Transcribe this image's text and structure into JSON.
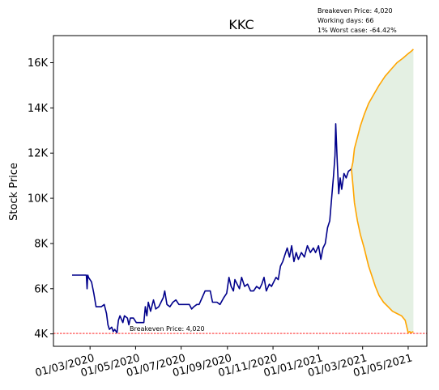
{
  "chart_data": {
    "type": "line",
    "title": "KKC",
    "xlabel": "",
    "ylabel": "Stock Price",
    "ylim": [
      3450,
      17200
    ],
    "xlim": [
      "2020-01-12",
      "2021-05-26"
    ],
    "y_ticks": [
      {
        "value": 4000,
        "label": "4K"
      },
      {
        "value": 6000,
        "label": "6K"
      },
      {
        "value": 8000,
        "label": "8K"
      },
      {
        "value": 10000,
        "label": "10K"
      },
      {
        "value": 12000,
        "label": "12K"
      },
      {
        "value": 14000,
        "label": "14K"
      },
      {
        "value": 16000,
        "label": "16K"
      }
    ],
    "x_ticks": [
      {
        "date": "2020-03-01",
        "label": "01/03/2020"
      },
      {
        "date": "2020-05-01",
        "label": "01/05/2020"
      },
      {
        "date": "2020-07-01",
        "label": "01/07/2020"
      },
      {
        "date": "2020-09-01",
        "label": "01/09/2020"
      },
      {
        "date": "2020-11-01",
        "label": "01/11/2020"
      },
      {
        "date": "2021-01-01",
        "label": "01/01/2021"
      },
      {
        "date": "2021-03-01",
        "label": "01/03/2021"
      },
      {
        "date": "2021-05-01",
        "label": "01/05/2021"
      }
    ],
    "info_lines": [
      "Breakeven Price: 4,020",
      "Working days: 66",
      "1% Worst case: -64.42%"
    ],
    "breakeven": {
      "value": 4020,
      "label": "Breakeven Price: 4,020",
      "color": "#ff0000"
    },
    "colors": {
      "history": "#00008b",
      "upper": "#ffa500",
      "lower": "#ffa500",
      "band": "#d5e8d4"
    },
    "grid": false,
    "series": [
      {
        "role": "history",
        "points": [
          [
            "2020-02-06",
            6600
          ],
          [
            "2020-02-20",
            6600
          ],
          [
            "2020-02-25",
            6600
          ],
          [
            "2020-02-26",
            6000
          ],
          [
            "2020-02-27",
            6600
          ],
          [
            "2020-02-28",
            6500
          ],
          [
            "2020-03-03",
            6300
          ],
          [
            "2020-03-06",
            5800
          ],
          [
            "2020-03-09",
            5200
          ],
          [
            "2020-03-16",
            5200
          ],
          [
            "2020-03-20",
            5300
          ],
          [
            "2020-03-23",
            4900
          ],
          [
            "2020-03-25",
            4400
          ],
          [
            "2020-03-27",
            4200
          ],
          [
            "2020-03-30",
            4300
          ],
          [
            "2020-04-01",
            4100
          ],
          [
            "2020-04-03",
            4200
          ],
          [
            "2020-04-06",
            4050
          ],
          [
            "2020-04-08",
            4600
          ],
          [
            "2020-04-10",
            4800
          ],
          [
            "2020-04-14",
            4500
          ],
          [
            "2020-04-16",
            4800
          ],
          [
            "2020-04-20",
            4700
          ],
          [
            "2020-04-22",
            4400
          ],
          [
            "2020-04-24",
            4700
          ],
          [
            "2020-04-28",
            4700
          ],
          [
            "2020-05-02",
            4500
          ],
          [
            "2020-05-06",
            4500
          ],
          [
            "2020-05-12",
            4500
          ],
          [
            "2020-05-14",
            5200
          ],
          [
            "2020-05-16",
            4800
          ],
          [
            "2020-05-18",
            5400
          ],
          [
            "2020-05-21",
            5000
          ],
          [
            "2020-05-25",
            5500
          ],
          [
            "2020-05-28",
            5100
          ],
          [
            "2020-06-01",
            5200
          ],
          [
            "2020-06-04",
            5400
          ],
          [
            "2020-06-07",
            5600
          ],
          [
            "2020-06-09",
            5900
          ],
          [
            "2020-06-12",
            5300
          ],
          [
            "2020-06-16",
            5200
          ],
          [
            "2020-06-20",
            5400
          ],
          [
            "2020-06-24",
            5500
          ],
          [
            "2020-06-28",
            5300
          ],
          [
            "2020-07-08",
            5300
          ],
          [
            "2020-07-12",
            5300
          ],
          [
            "2020-07-15",
            5100
          ],
          [
            "2020-07-18",
            5200
          ],
          [
            "2020-07-22",
            5300
          ],
          [
            "2020-07-25",
            5300
          ],
          [
            "2020-07-29",
            5600
          ],
          [
            "2020-08-02",
            5900
          ],
          [
            "2020-08-09",
            5900
          ],
          [
            "2020-08-12",
            5400
          ],
          [
            "2020-08-18",
            5400
          ],
          [
            "2020-08-22",
            5300
          ],
          [
            "2020-08-27",
            5600
          ],
          [
            "2020-08-31",
            5800
          ],
          [
            "2020-09-03",
            6500
          ],
          [
            "2020-09-06",
            6100
          ],
          [
            "2020-09-09",
            5900
          ],
          [
            "2020-09-11",
            6400
          ],
          [
            "2020-09-14",
            6200
          ],
          [
            "2020-09-17",
            6000
          ],
          [
            "2020-09-20",
            6500
          ],
          [
            "2020-09-24",
            6100
          ],
          [
            "2020-09-28",
            6200
          ],
          [
            "2020-10-02",
            5900
          ],
          [
            "2020-10-06",
            5900
          ],
          [
            "2020-10-10",
            6100
          ],
          [
            "2020-10-14",
            6000
          ],
          [
            "2020-10-17",
            6200
          ],
          [
            "2020-10-20",
            6500
          ],
          [
            "2020-10-23",
            5900
          ],
          [
            "2020-10-27",
            6200
          ],
          [
            "2020-10-30",
            6100
          ],
          [
            "2020-11-02",
            6300
          ],
          [
            "2020-11-05",
            6500
          ],
          [
            "2020-11-08",
            6400
          ],
          [
            "2020-11-11",
            7000
          ],
          [
            "2020-11-14",
            7200
          ],
          [
            "2020-11-17",
            7500
          ],
          [
            "2020-11-20",
            7800
          ],
          [
            "2020-11-23",
            7400
          ],
          [
            "2020-11-26",
            7900
          ],
          [
            "2020-11-29",
            7200
          ],
          [
            "2020-12-02",
            7600
          ],
          [
            "2020-12-05",
            7300
          ],
          [
            "2020-12-09",
            7600
          ],
          [
            "2020-12-13",
            7400
          ],
          [
            "2020-12-17",
            7900
          ],
          [
            "2020-12-21",
            7600
          ],
          [
            "2020-12-25",
            7800
          ],
          [
            "2020-12-28",
            7600
          ],
          [
            "2021-01-01",
            7900
          ],
          [
            "2021-01-04",
            7300
          ],
          [
            "2021-01-07",
            7800
          ],
          [
            "2021-01-10",
            8000
          ],
          [
            "2021-01-13",
            8700
          ],
          [
            "2021-01-16",
            9000
          ],
          [
            "2021-01-19",
            10200
          ],
          [
            "2021-01-21",
            11000
          ],
          [
            "2021-01-23",
            11900
          ],
          [
            "2021-01-24",
            13300
          ],
          [
            "2021-01-26",
            11600
          ],
          [
            "2021-01-28",
            10200
          ],
          [
            "2021-01-30",
            10900
          ],
          [
            "2021-02-01",
            10400
          ],
          [
            "2021-02-04",
            11100
          ],
          [
            "2021-02-07",
            10900
          ],
          [
            "2021-02-10",
            11200
          ],
          [
            "2021-02-14",
            11300
          ]
        ]
      },
      {
        "role": "upper",
        "points": [
          [
            "2021-02-14",
            11300
          ],
          [
            "2021-02-16",
            11600
          ],
          [
            "2021-02-18",
            12200
          ],
          [
            "2021-02-22",
            12700
          ],
          [
            "2021-02-26",
            13200
          ],
          [
            "2021-03-03",
            13700
          ],
          [
            "2021-03-09",
            14200
          ],
          [
            "2021-03-16",
            14600
          ],
          [
            "2021-03-23",
            15000
          ],
          [
            "2021-03-31",
            15400
          ],
          [
            "2021-04-08",
            15700
          ],
          [
            "2021-04-16",
            16000
          ],
          [
            "2021-04-24",
            16200
          ],
          [
            "2021-05-01",
            16400
          ],
          [
            "2021-05-05",
            16500
          ],
          [
            "2021-05-08",
            16600
          ]
        ]
      },
      {
        "role": "lower",
        "points": [
          [
            "2021-02-14",
            11300
          ],
          [
            "2021-02-16",
            10600
          ],
          [
            "2021-02-18",
            9800
          ],
          [
            "2021-02-22",
            9000
          ],
          [
            "2021-02-26",
            8400
          ],
          [
            "2021-03-03",
            7800
          ],
          [
            "2021-03-09",
            7000
          ],
          [
            "2021-03-13",
            6600
          ],
          [
            "2021-03-18",
            6100
          ],
          [
            "2021-03-23",
            5700
          ],
          [
            "2021-03-29",
            5400
          ],
          [
            "2021-04-04",
            5200
          ],
          [
            "2021-04-10",
            5000
          ],
          [
            "2021-04-16",
            4900
          ],
          [
            "2021-04-22",
            4800
          ],
          [
            "2021-04-27",
            4600
          ],
          [
            "2021-05-01",
            4050
          ],
          [
            "2021-05-03",
            4100
          ],
          [
            "2021-05-05",
            4050
          ],
          [
            "2021-05-08",
            4100
          ]
        ]
      }
    ]
  }
}
